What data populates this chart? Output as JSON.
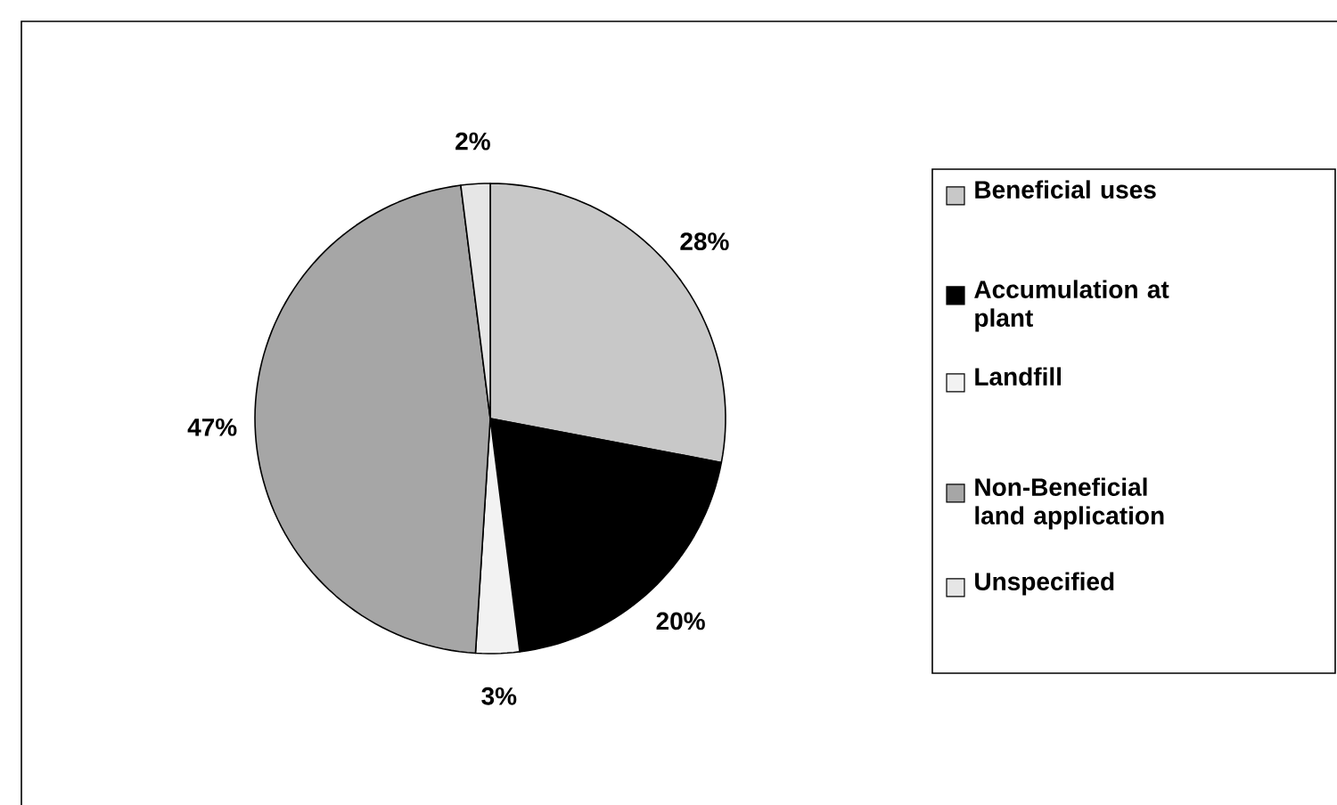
{
  "chart_data": {
    "type": "pie",
    "categories": [
      "Beneficial uses",
      "Accumulation at plant",
      "Landfill",
      "Non-Beneficial land application",
      "Unspecified"
    ],
    "values": [
      28,
      20,
      3,
      47,
      2
    ],
    "value_labels": [
      "28%",
      "20%",
      "3%",
      "47%",
      "2%"
    ],
    "colors": [
      "#c8c8c8",
      "#000000",
      "#f2f2f2",
      "#a6a6a6",
      "#e6e6e6"
    ],
    "legend": "right"
  }
}
